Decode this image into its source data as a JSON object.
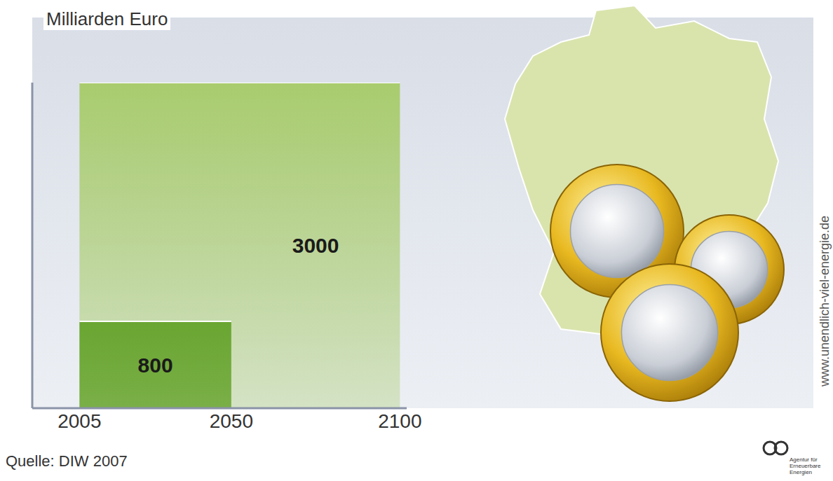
{
  "chart_data": {
    "type": "area",
    "y_label": "Milliarden Euro",
    "x": [
      2005,
      2050,
      2100
    ],
    "series": [
      {
        "color": "#a9cc6e",
        "values": [
          3000,
          3000,
          3000
        ]
      },
      {
        "color": "#6aa632",
        "values": [
          800,
          800,
          null
        ]
      }
    ],
    "xlim": [
      1991,
      2102
    ],
    "xticks": [
      2005,
      2050,
      2100
    ],
    "ylim": [
      0,
      3000
    ],
    "tick_labels": "x",
    "data_labels": true,
    "source": "Quelle: DIW 2007",
    "annotations": [
      "www.unendlich-viel-energie.de",
      "Agentur für Erneuerbare Energien"
    ]
  }
}
